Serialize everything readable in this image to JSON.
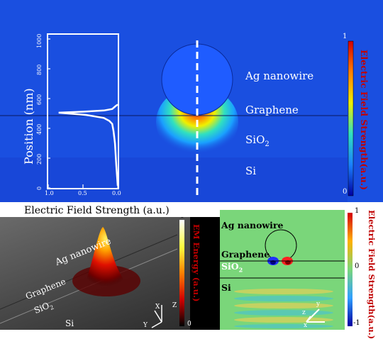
{
  "top_panel": {
    "layers": {
      "nanowire": "Ag nanowire",
      "graphene": "Graphene",
      "sio2": "SiO",
      "sio2_sub": "2",
      "si": "Si"
    },
    "colorbar": {
      "label": "Electric Field Strength(a.u.)",
      "max": "1",
      "min": "0"
    },
    "colors": {
      "background": "#1a4fe0",
      "hotspot": "#ff2000",
      "nanowire": "#1f5cff"
    }
  },
  "inset_plot": {
    "ylabel": "Position  (nm)",
    "xlabel": "Electric Field Strength (a.u.)",
    "yticks": [
      "0",
      "200",
      "400",
      "600",
      "800",
      "1000"
    ],
    "xticks": [
      "1.0",
      "0.5",
      "0.0"
    ]
  },
  "chart_data": {
    "type": "line",
    "xlabel": "Electric Field Strength (a.u.)",
    "ylabel": "Position  (nm)",
    "xlim": [
      1.0,
      0.0
    ],
    "ylim": [
      0,
      1000
    ],
    "series": [
      {
        "x": [
          0.0,
          0.02,
          0.04,
          0.06,
          0.08,
          0.12,
          0.2,
          0.45,
          0.85,
          0.5,
          0.2,
          0.08,
          0.03,
          0.0
        ],
        "y": [
          15,
          150,
          300,
          380,
          430,
          450,
          470,
          490,
          505,
          512,
          520,
          530,
          550,
          560
        ]
      }
    ]
  },
  "bottom_left": {
    "labels": {
      "nanowire": "Ag nanowire",
      "graphene": "Graphene",
      "sio2": "SiO",
      "sio2_sub": "2",
      "si": "Si"
    },
    "colorbar": {
      "label": "EM Energy (a.u.)",
      "max": "1",
      "min": "0"
    },
    "axes": {
      "x": "X",
      "y": "Y",
      "z": "Z"
    }
  },
  "bottom_right": {
    "labels": {
      "nanowire": "Ag nanowire",
      "graphene": "Graphene",
      "sio2": "SiO",
      "sio2_sub": "2",
      "si": "Si"
    },
    "colorbar": {
      "label": "Electric Field Strength(a.u.)",
      "max": "1",
      "mid": "0",
      "min": "-1"
    },
    "axes": {
      "x": "x",
      "y": "y",
      "z": "z"
    }
  }
}
